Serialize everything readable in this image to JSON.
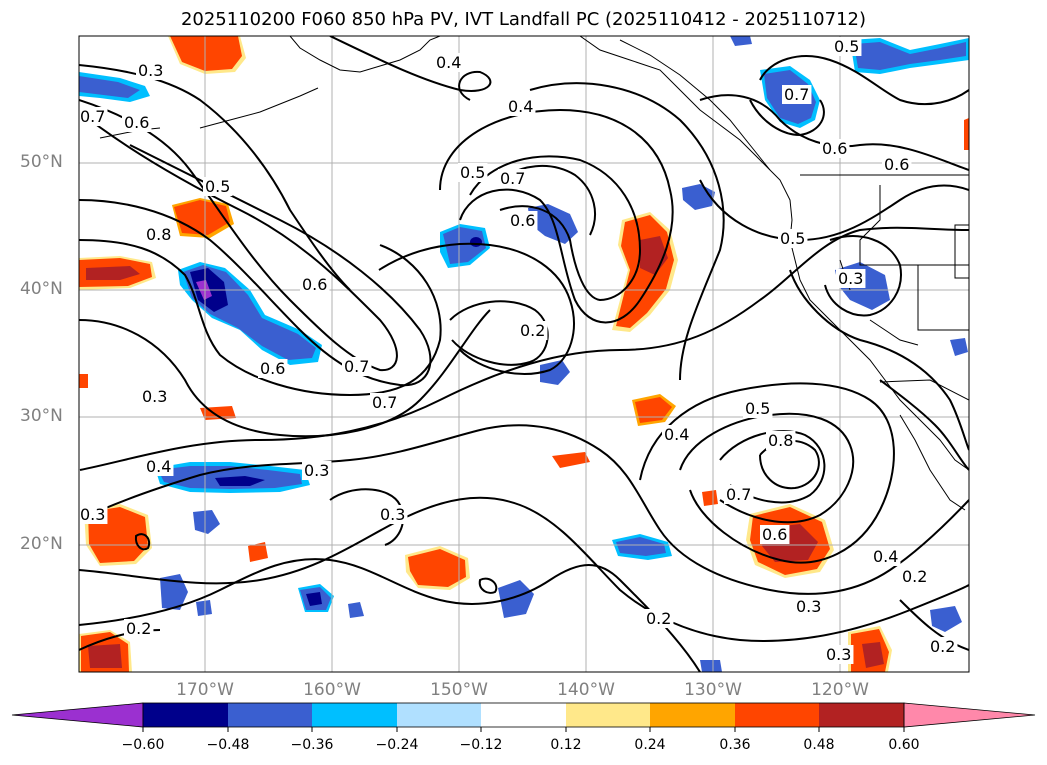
{
  "title": "2025110200 F060 850 hPa PV, IVT Landfall PC (2025110412 - 2025110712)",
  "axes": {
    "lat_labels": [
      "50°N",
      "40°N",
      "30°N",
      "20°N"
    ],
    "lon_labels": [
      "170°W",
      "160°W",
      "150°W",
      "140°W",
      "130°W",
      "120°W"
    ]
  },
  "colorbar": {
    "tick_labels": [
      "−0.60",
      "−0.48",
      "−0.36",
      "−0.24",
      "−0.12",
      "0.12",
      "0.24",
      "0.36",
      "0.48",
      "0.60"
    ],
    "colors": [
      "#9b30d0",
      "#00008b",
      "#3a5fd0",
      "#00bfff",
      "#b0e0ff",
      "#ffffff",
      "#ffe88a",
      "#ffa500",
      "#ff4500",
      "#b22222",
      "#ff88aa"
    ]
  },
  "contour_labels": [
    "0.3",
    "0.7",
    "0.6",
    "0.5",
    "0.8",
    "0.6",
    "0.7",
    "0.3",
    "0.4",
    "0.3",
    "0.2",
    "0.4",
    "0.4",
    "0.5",
    "0.7",
    "0.6",
    "0.2",
    "0.3",
    "0.4",
    "0.7",
    "0.6",
    "0.5",
    "0.8",
    "0.7",
    "0.6",
    "0.4",
    "0.2",
    "0.3",
    "0.2",
    "0.3",
    "0.7",
    "0.6",
    "0.6",
    "0.5",
    "0.5",
    "0.3",
    "0.2",
    "0.3"
  ],
  "colors": {
    "dark_blue": "#00008b",
    "mid_blue": "#3a5fd0",
    "light_blue": "#00bfff",
    "orange_red": "#ff4500",
    "dark_red": "#b22222",
    "purple": "#9b30d0",
    "yellow": "#ffe88a",
    "orange": "#ffa500"
  }
}
